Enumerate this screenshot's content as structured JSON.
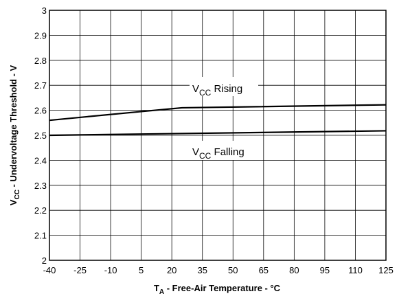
{
  "chart_data": {
    "type": "line",
    "xlabel": {
      "main": "T",
      "sub": "A",
      "rest": " - Free-Air Temperature - °C"
    },
    "ylabel": {
      "main": "V",
      "sub": "CC",
      "rest": " - Undervoltage Threshold - V"
    },
    "xlim": [
      -40,
      125
    ],
    "ylim": [
      2,
      3
    ],
    "x_ticks": [
      -40,
      -25,
      -10,
      5,
      20,
      35,
      50,
      65,
      80,
      95,
      110,
      125
    ],
    "x_tick_labels": [
      "-40",
      "-25",
      "-10",
      "5",
      "20",
      "35",
      "50",
      "65",
      "80",
      "95",
      "110",
      "125"
    ],
    "y_ticks": [
      2,
      2.1,
      2.2,
      2.3,
      2.4,
      2.5,
      2.6,
      2.7,
      2.8,
      2.9,
      3
    ],
    "y_tick_labels": [
      "2",
      "2.1",
      "2.2",
      "2.3",
      "2.4",
      "2.5",
      "2.6",
      "2.7",
      "2.8",
      "2.9",
      "3"
    ],
    "grid": true,
    "series": [
      {
        "name": {
          "main": "V",
          "sub": "CC",
          "rest": " Rising"
        },
        "x": [
          -40,
          5,
          25,
          125
        ],
        "y": [
          2.56,
          2.595,
          2.61,
          2.622
        ],
        "color": "#000000"
      },
      {
        "name": {
          "main": "V",
          "sub": "CC",
          "rest": " Falling"
        },
        "x": [
          -40,
          125
        ],
        "y": [
          2.5,
          2.518
        ],
        "color": "#000000"
      }
    ]
  }
}
